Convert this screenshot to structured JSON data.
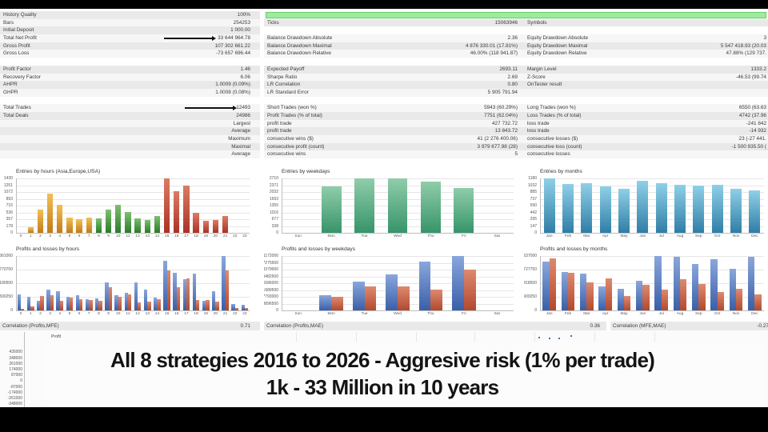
{
  "overlay": {
    "line1": "All 8 strategies 2016 to 2026 - Aggresive risk (1% per trade)",
    "line2": "1k - 33 Million in 10 years"
  },
  "stats": {
    "left": [
      {
        "label": "History Quality",
        "value": "100%"
      },
      {
        "label": "Bars",
        "value": "254253"
      },
      {
        "label": "Initial Deposit",
        "value": "1 000.00"
      },
      {
        "label": "Total Net Profit",
        "value": "33 644 964.78",
        "arrow": true
      },
      {
        "label": "Gross Profit",
        "value": "107 302 661.22"
      },
      {
        "label": "Gross Loss",
        "value": "-73 657 696.44"
      },
      {
        "blank": true
      },
      {
        "label": "Profit Factor",
        "value": "1.46"
      },
      {
        "label": "Recovery Factor",
        "value": "6.06"
      },
      {
        "label": "AHPR",
        "value": "1.0009 (0.09%)"
      },
      {
        "label": "GHPR",
        "value": "1.0008 (0.08%)"
      },
      {
        "blank": true
      },
      {
        "label": "Total Trades",
        "value": "12493",
        "arrow": true
      },
      {
        "label": "Total Deals",
        "value": "24986"
      },
      {
        "label": "",
        "value": "Largest"
      },
      {
        "label": "",
        "value": "Average"
      },
      {
        "label": "",
        "value": "Maximum"
      },
      {
        "label": "",
        "value": "Maximal"
      },
      {
        "label": "",
        "value": "Average"
      }
    ],
    "middle": [
      {
        "progress": true
      },
      {
        "label": "Ticks",
        "value": "15063946"
      },
      {
        "blank": true
      },
      {
        "label": "Balance Drawdown Absolute",
        "value": "2.36"
      },
      {
        "label": "Balance Drawdown Maximal",
        "value": "4 876 330.01 (17.81%)"
      },
      {
        "label": "Balance Drawdown Relative",
        "value": "46.00% (118 941.87)"
      },
      {
        "blank": true
      },
      {
        "label": "Expected Payoff",
        "value": "2693.11"
      },
      {
        "label": "Sharpe Ratio",
        "value": "2.69"
      },
      {
        "label": "LR Correlation",
        "value": "0.80"
      },
      {
        "label": "LR Standard Error",
        "value": "5 905 791.94"
      },
      {
        "blank": true
      },
      {
        "label": "Short Trades (won %)",
        "value": "5943 (60.29%)"
      },
      {
        "label": "Profit Trades (% of total)",
        "value": "7751 (62.04%)"
      },
      {
        "label": "profit trade",
        "value": "427 732.72"
      },
      {
        "label": "profit trade",
        "value": "13 843.72"
      },
      {
        "label": "consecutive wins ($)",
        "value": "41 (2 276 400.06)"
      },
      {
        "label": "consecutive profit (count)",
        "value": "3 979 677.98 (28)"
      },
      {
        "label": "consecutive wins",
        "value": "5"
      }
    ],
    "right": [
      {
        "progress": true
      },
      {
        "label": "Symbols",
        "value": ""
      },
      {
        "blank": true
      },
      {
        "label": "Equity Drawdown Absolute",
        "value": "3"
      },
      {
        "label": "Equity Drawdown Maximal",
        "value": "5 547 418.93 (20.03"
      },
      {
        "label": "Equity Drawdown Relative",
        "value": "47.88% (129 737."
      },
      {
        "blank": true
      },
      {
        "label": "Margin Level",
        "value": "1333.2"
      },
      {
        "label": "Z-Score",
        "value": "-46.53 (99.74"
      },
      {
        "label": "OnTester result",
        "value": ""
      },
      {
        "label": "",
        "value": ""
      },
      {
        "blank": true
      },
      {
        "label": "Long Trades (won %)",
        "value": "6550 (63.63"
      },
      {
        "label": "Loss Trades (% of total)",
        "value": "4742 (37.96"
      },
      {
        "label": "loss trade",
        "value": "-241 842"
      },
      {
        "label": "loss trade",
        "value": "-14 932"
      },
      {
        "label": "consecutive losses ($)",
        "value": "23 (-27 441."
      },
      {
        "label": "consecutive loss (count)",
        "value": "-1 500 935.50 ("
      },
      {
        "label": "consecutive losses",
        "value": ""
      }
    ]
  },
  "correlations": [
    {
      "label": "Correlation (Profits,MFE)",
      "value": "0.71"
    },
    {
      "label": "Correlation (Profits,MAE)",
      "value": "0.36"
    },
    {
      "label": "Correlation (MFE,MAE)",
      "value": "-0.27"
    }
  ],
  "bottom_chart": {
    "title": "Correlation (Profits,MFE)",
    "legend": "Profit",
    "yticks": [
      435000,
      348000,
      261000,
      174000,
      87000,
      0,
      -87000,
      -174000,
      -261000,
      -348000
    ]
  },
  "colors": {
    "progress_green": "#9dec9d",
    "asia_orange": "#d89a2b",
    "europe_green": "#3f8f3f",
    "usa_red": "#bf4e38",
    "weekday_green": "#4da07a",
    "month_blue": "#4f9fc4",
    "profit_blue": "#4a6fb5",
    "loss_red": "#bf4e30"
  },
  "chart_data": [
    {
      "type": "bar",
      "title": "Entries by hours (Asia,Europe,USA)",
      "categories": [
        "0",
        "1",
        "2",
        "3",
        "4",
        "5",
        "6",
        "7",
        "8",
        "9",
        "10",
        "11",
        "12",
        "13",
        "14",
        "15",
        "16",
        "17",
        "18",
        "19",
        "20",
        "21",
        "22",
        "23"
      ],
      "values": [
        0,
        140,
        600,
        1020,
        730,
        410,
        360,
        410,
        380,
        610,
        740,
        545,
        380,
        340,
        450,
        1430,
        1090,
        1240,
        520,
        320,
        330,
        450,
        0,
        0
      ],
      "bar_colors": [
        "",
        "orange",
        "orange",
        "orange",
        "orange",
        "orange",
        "orange",
        "orange",
        "green",
        "green",
        "green",
        "green",
        "green",
        "green",
        "green",
        "red",
        "red",
        "red",
        "red",
        "red",
        "red",
        "red",
        "",
        ""
      ],
      "ylim": [
        0,
        1430
      ],
      "yticks": [
        1430,
        1251,
        1072,
        893,
        715,
        536,
        357,
        178,
        0
      ]
    },
    {
      "type": "bar",
      "title": "Entries by weekdays",
      "categories": [
        "Sun",
        "Mon",
        "Tue",
        "Wed",
        "Thu",
        "Fri",
        "Sat"
      ],
      "values": [
        0,
        2310,
        2710,
        2710,
        2560,
        2230,
        0
      ],
      "ylim": [
        0,
        2710
      ],
      "yticks": [
        2710,
        2371,
        2032,
        1693,
        1355,
        1016,
        677,
        338,
        0
      ]
    },
    {
      "type": "bar",
      "title": "Entries by months",
      "categories": [
        "Jan",
        "Feb",
        "Mar",
        "Apr",
        "May",
        "Jun",
        "Jul",
        "Aug",
        "Sep",
        "Oct",
        "Nov",
        "Dec"
      ],
      "values": [
        1180,
        1060,
        1070,
        1000,
        950,
        1120,
        1080,
        1040,
        1030,
        1045,
        955,
        925
      ],
      "ylim": [
        0,
        1180
      ],
      "yticks": [
        1180,
        1032,
        885,
        737,
        590,
        442,
        295,
        147,
        0
      ]
    },
    {
      "type": "bar",
      "title": "Profits and losses by hours",
      "categories": [
        "0",
        "1",
        "2",
        "3",
        "4",
        "5",
        "6",
        "7",
        "8",
        "9",
        "10",
        "11",
        "12",
        "13",
        "14",
        "15",
        "16",
        "17",
        "18",
        "19",
        "20",
        "21",
        "22",
        "23"
      ],
      "series": [
        {
          "name": "profit",
          "values": [
            700000,
            590000,
            430000,
            890000,
            840000,
            600000,
            660000,
            470000,
            520000,
            1230000,
            650000,
            750000,
            1210000,
            890000,
            540000,
            2140000,
            1640000,
            1350000,
            1580000,
            420000,
            830000,
            2360000,
            280000,
            250000
          ]
        },
        {
          "name": "loss",
          "values": [
            80000,
            180000,
            640000,
            660000,
            430000,
            560000,
            500000,
            460000,
            420000,
            1000000,
            580000,
            680000,
            330000,
            390000,
            500000,
            1740000,
            1000000,
            1380000,
            450000,
            450000,
            390000,
            1720000,
            100000,
            90000
          ]
        }
      ],
      "ylim": [
        0,
        2361000
      ],
      "yticks": [
        2361000,
        1770750,
        1180500,
        590250,
        0
      ]
    },
    {
      "type": "bar",
      "title": "Profits and losses by weekdays",
      "categories": [
        "Sun",
        "Mon",
        "Tue",
        "Wed",
        "Thu",
        "Fri",
        "Sat"
      ],
      "series": [
        {
          "name": "profit",
          "values": [
            0,
            8800000,
            16500000,
            20500000,
            27900000,
            31172000,
            0
          ]
        },
        {
          "name": "loss",
          "values": [
            0,
            7700000,
            13800000,
            13800000,
            11700000,
            23300000,
            0
          ]
        }
      ],
      "ylim": [
        0,
        31172000
      ],
      "yticks": [
        31172000,
        27275500,
        23379000,
        19482500,
        15586000,
        11689500,
        7793000,
        3896500,
        0
      ]
    },
    {
      "type": "bar",
      "title": "Profits and losses by months",
      "categories": [
        "Jan",
        "Feb",
        "Mar",
        "Apr",
        "May",
        "Jun",
        "Jul",
        "Aug",
        "Sep",
        "Oct",
        "Nov",
        "Dec"
      ],
      "series": [
        {
          "name": "profit",
          "values": [
            10500000,
            8200000,
            7900000,
            5200000,
            4600000,
            6400000,
            11637000,
            11400000,
            9900000,
            10900000,
            8900000,
            11400000
          ]
        },
        {
          "name": "loss",
          "values": [
            11200000,
            8000000,
            6000000,
            6900000,
            3100000,
            5400000,
            4500000,
            6600000,
            5600000,
            4000000,
            4600000,
            3500000
          ]
        }
      ],
      "ylim": [
        0,
        11637000
      ],
      "yticks": [
        11637000,
        8727750,
        5818500,
        2909250,
        0
      ]
    }
  ]
}
